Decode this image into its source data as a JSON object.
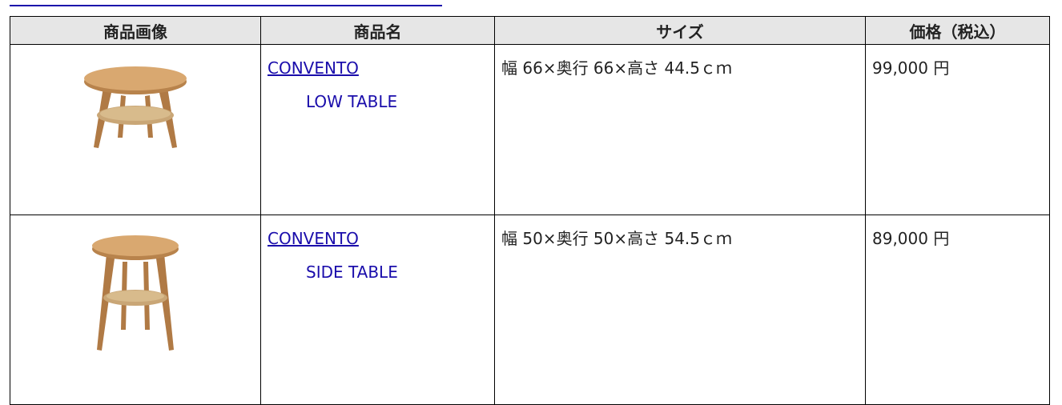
{
  "table": {
    "headers": [
      "商品画像",
      "商品名",
      "サイズ",
      "価格（税込）"
    ],
    "rows": [
      {
        "name": [
          "CONVENTO",
          "LOW TABLE"
        ],
        "size": "幅 66×奥行 66×高さ 44.5ｃｍ",
        "price": "99,000 円"
      },
      {
        "name": [
          "CONVENTO",
          "SIDE TABLE"
        ],
        "size": "幅 50×奥行 50×高さ 54.5ｃｍ",
        "price": "89,000 円"
      }
    ]
  }
}
